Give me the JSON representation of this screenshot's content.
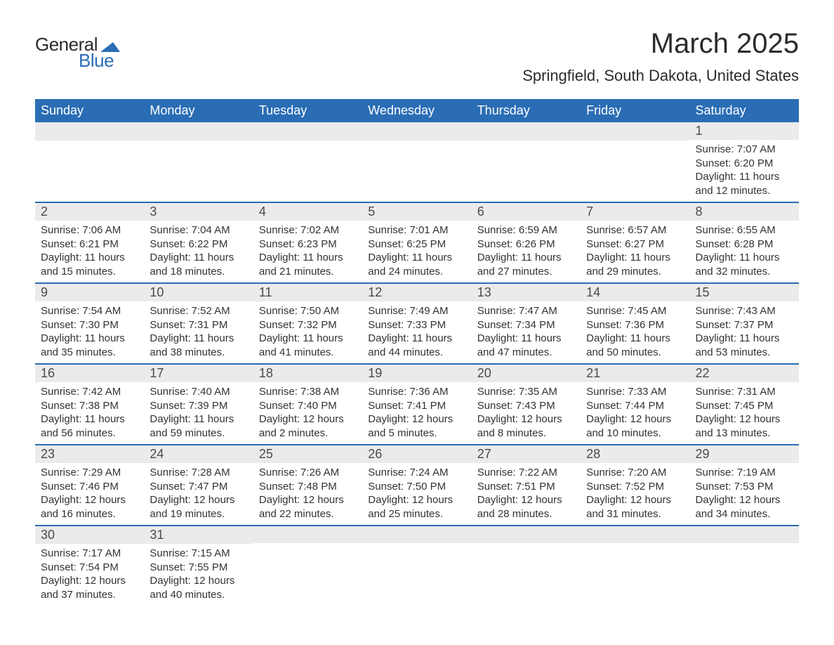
{
  "logo": {
    "text_general": "General",
    "text_blue": "Blue",
    "shape_color": "#2a6db5"
  },
  "title": "March 2025",
  "location": "Springfield, South Dakota, United States",
  "colors": {
    "header_bg": "#2a6db5",
    "header_text": "#ffffff",
    "daynum_bg": "#ebebeb",
    "border": "#2a6db5",
    "text": "#333333"
  },
  "weekday_headers": [
    "Sunday",
    "Monday",
    "Tuesday",
    "Wednesday",
    "Thursday",
    "Friday",
    "Saturday"
  ],
  "weeks": [
    [
      null,
      null,
      null,
      null,
      null,
      null,
      {
        "n": "1",
        "sunrise": "Sunrise: 7:07 AM",
        "sunset": "Sunset: 6:20 PM",
        "daylight": "Daylight: 11 hours and 12 minutes."
      }
    ],
    [
      {
        "n": "2",
        "sunrise": "Sunrise: 7:06 AM",
        "sunset": "Sunset: 6:21 PM",
        "daylight": "Daylight: 11 hours and 15 minutes."
      },
      {
        "n": "3",
        "sunrise": "Sunrise: 7:04 AM",
        "sunset": "Sunset: 6:22 PM",
        "daylight": "Daylight: 11 hours and 18 minutes."
      },
      {
        "n": "4",
        "sunrise": "Sunrise: 7:02 AM",
        "sunset": "Sunset: 6:23 PM",
        "daylight": "Daylight: 11 hours and 21 minutes."
      },
      {
        "n": "5",
        "sunrise": "Sunrise: 7:01 AM",
        "sunset": "Sunset: 6:25 PM",
        "daylight": "Daylight: 11 hours and 24 minutes."
      },
      {
        "n": "6",
        "sunrise": "Sunrise: 6:59 AM",
        "sunset": "Sunset: 6:26 PM",
        "daylight": "Daylight: 11 hours and 27 minutes."
      },
      {
        "n": "7",
        "sunrise": "Sunrise: 6:57 AM",
        "sunset": "Sunset: 6:27 PM",
        "daylight": "Daylight: 11 hours and 29 minutes."
      },
      {
        "n": "8",
        "sunrise": "Sunrise: 6:55 AM",
        "sunset": "Sunset: 6:28 PM",
        "daylight": "Daylight: 11 hours and 32 minutes."
      }
    ],
    [
      {
        "n": "9",
        "sunrise": "Sunrise: 7:54 AM",
        "sunset": "Sunset: 7:30 PM",
        "daylight": "Daylight: 11 hours and 35 minutes."
      },
      {
        "n": "10",
        "sunrise": "Sunrise: 7:52 AM",
        "sunset": "Sunset: 7:31 PM",
        "daylight": "Daylight: 11 hours and 38 minutes."
      },
      {
        "n": "11",
        "sunrise": "Sunrise: 7:50 AM",
        "sunset": "Sunset: 7:32 PM",
        "daylight": "Daylight: 11 hours and 41 minutes."
      },
      {
        "n": "12",
        "sunrise": "Sunrise: 7:49 AM",
        "sunset": "Sunset: 7:33 PM",
        "daylight": "Daylight: 11 hours and 44 minutes."
      },
      {
        "n": "13",
        "sunrise": "Sunrise: 7:47 AM",
        "sunset": "Sunset: 7:34 PM",
        "daylight": "Daylight: 11 hours and 47 minutes."
      },
      {
        "n": "14",
        "sunrise": "Sunrise: 7:45 AM",
        "sunset": "Sunset: 7:36 PM",
        "daylight": "Daylight: 11 hours and 50 minutes."
      },
      {
        "n": "15",
        "sunrise": "Sunrise: 7:43 AM",
        "sunset": "Sunset: 7:37 PM",
        "daylight": "Daylight: 11 hours and 53 minutes."
      }
    ],
    [
      {
        "n": "16",
        "sunrise": "Sunrise: 7:42 AM",
        "sunset": "Sunset: 7:38 PM",
        "daylight": "Daylight: 11 hours and 56 minutes."
      },
      {
        "n": "17",
        "sunrise": "Sunrise: 7:40 AM",
        "sunset": "Sunset: 7:39 PM",
        "daylight": "Daylight: 11 hours and 59 minutes."
      },
      {
        "n": "18",
        "sunrise": "Sunrise: 7:38 AM",
        "sunset": "Sunset: 7:40 PM",
        "daylight": "Daylight: 12 hours and 2 minutes."
      },
      {
        "n": "19",
        "sunrise": "Sunrise: 7:36 AM",
        "sunset": "Sunset: 7:41 PM",
        "daylight": "Daylight: 12 hours and 5 minutes."
      },
      {
        "n": "20",
        "sunrise": "Sunrise: 7:35 AM",
        "sunset": "Sunset: 7:43 PM",
        "daylight": "Daylight: 12 hours and 8 minutes."
      },
      {
        "n": "21",
        "sunrise": "Sunrise: 7:33 AM",
        "sunset": "Sunset: 7:44 PM",
        "daylight": "Daylight: 12 hours and 10 minutes."
      },
      {
        "n": "22",
        "sunrise": "Sunrise: 7:31 AM",
        "sunset": "Sunset: 7:45 PM",
        "daylight": "Daylight: 12 hours and 13 minutes."
      }
    ],
    [
      {
        "n": "23",
        "sunrise": "Sunrise: 7:29 AM",
        "sunset": "Sunset: 7:46 PM",
        "daylight": "Daylight: 12 hours and 16 minutes."
      },
      {
        "n": "24",
        "sunrise": "Sunrise: 7:28 AM",
        "sunset": "Sunset: 7:47 PM",
        "daylight": "Daylight: 12 hours and 19 minutes."
      },
      {
        "n": "25",
        "sunrise": "Sunrise: 7:26 AM",
        "sunset": "Sunset: 7:48 PM",
        "daylight": "Daylight: 12 hours and 22 minutes."
      },
      {
        "n": "26",
        "sunrise": "Sunrise: 7:24 AM",
        "sunset": "Sunset: 7:50 PM",
        "daylight": "Daylight: 12 hours and 25 minutes."
      },
      {
        "n": "27",
        "sunrise": "Sunrise: 7:22 AM",
        "sunset": "Sunset: 7:51 PM",
        "daylight": "Daylight: 12 hours and 28 minutes."
      },
      {
        "n": "28",
        "sunrise": "Sunrise: 7:20 AM",
        "sunset": "Sunset: 7:52 PM",
        "daylight": "Daylight: 12 hours and 31 minutes."
      },
      {
        "n": "29",
        "sunrise": "Sunrise: 7:19 AM",
        "sunset": "Sunset: 7:53 PM",
        "daylight": "Daylight: 12 hours and 34 minutes."
      }
    ],
    [
      {
        "n": "30",
        "sunrise": "Sunrise: 7:17 AM",
        "sunset": "Sunset: 7:54 PM",
        "daylight": "Daylight: 12 hours and 37 minutes."
      },
      {
        "n": "31",
        "sunrise": "Sunrise: 7:15 AM",
        "sunset": "Sunset: 7:55 PM",
        "daylight": "Daylight: 12 hours and 40 minutes."
      },
      null,
      null,
      null,
      null,
      null
    ]
  ]
}
